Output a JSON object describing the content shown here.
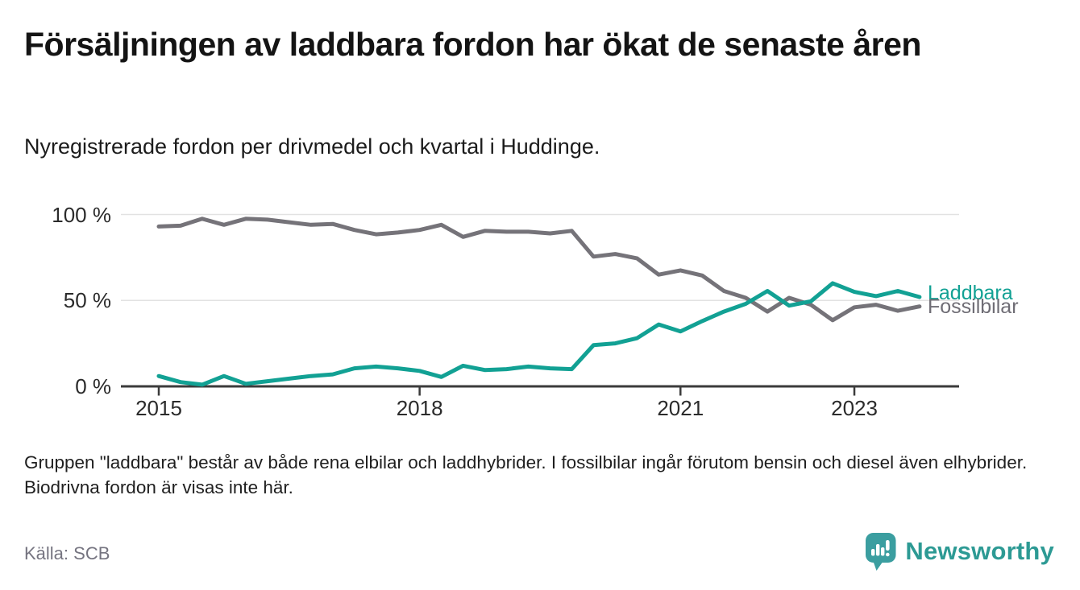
{
  "header": {
    "title": "Försäljningen av laddbara fordon har ökat de senaste åren",
    "subtitle": "Nyregistrerade fordon per drivmedel och kvartal i Huddinge."
  },
  "footnote": "Gruppen \"laddbara\" består av både rena elbilar och laddhybrider. I fossilbilar ingår förutom bensin och diesel även elhybrider. Biodrivna fordon är visas inte här.",
  "source": "Källa: SCB",
  "brand": {
    "name": "Newsworthy",
    "logo_icon": "bar-chart-pin-icon",
    "color": "#2d9a94"
  },
  "chart_data": {
    "type": "line",
    "title": "Nyregistrerade fordon per drivmedel och kvartal i Huddinge",
    "x_unit": "quarter",
    "x_start": "2015 Q1",
    "x_end": "2023 Q4",
    "ylim": [
      0,
      100
    ],
    "grid": "horizontal",
    "legend_position": "end-of-line-labels",
    "colors": {
      "laddbara": "#12a194",
      "fossilbilar": "#757379",
      "gridline": "#e2e2e2",
      "axis": "#3b3b3b"
    },
    "y_ticks": [
      {
        "value": 0,
        "label": "0 %"
      },
      {
        "value": 50,
        "label": "50 %"
      },
      {
        "value": 100,
        "label": "100 %"
      }
    ],
    "x_ticks": [
      {
        "index": 0,
        "label": "2015"
      },
      {
        "index": 12,
        "label": "2018"
      },
      {
        "index": 24,
        "label": "2021"
      },
      {
        "index": 32,
        "label": "2023"
      }
    ],
    "series": [
      {
        "name": "Fossilbilar",
        "color": "#757379",
        "values": [
          93,
          93.5,
          97.5,
          94,
          97.5,
          97,
          95.5,
          94,
          94.5,
          91,
          88.5,
          89.5,
          91,
          94,
          87,
          90.5,
          90,
          90,
          89,
          90.5,
          75.5,
          77,
          74.5,
          65,
          67.5,
          64.5,
          55.5,
          51.5,
          43.5,
          51.5,
          47.5,
          38.5,
          46,
          47.5,
          44,
          46.5
        ]
      },
      {
        "name": "Laddbara",
        "color": "#12a194",
        "values": [
          6,
          2.5,
          1,
          6,
          1.5,
          3,
          4.5,
          6,
          7,
          10.5,
          11.5,
          10.5,
          9,
          5.5,
          12,
          9.5,
          10,
          11.5,
          10.5,
          10,
          24,
          25,
          28,
          36,
          32,
          38,
          43.5,
          48,
          55.5,
          47,
          49.5,
          60,
          55,
          52.5,
          55.5,
          52
        ]
      }
    ]
  }
}
